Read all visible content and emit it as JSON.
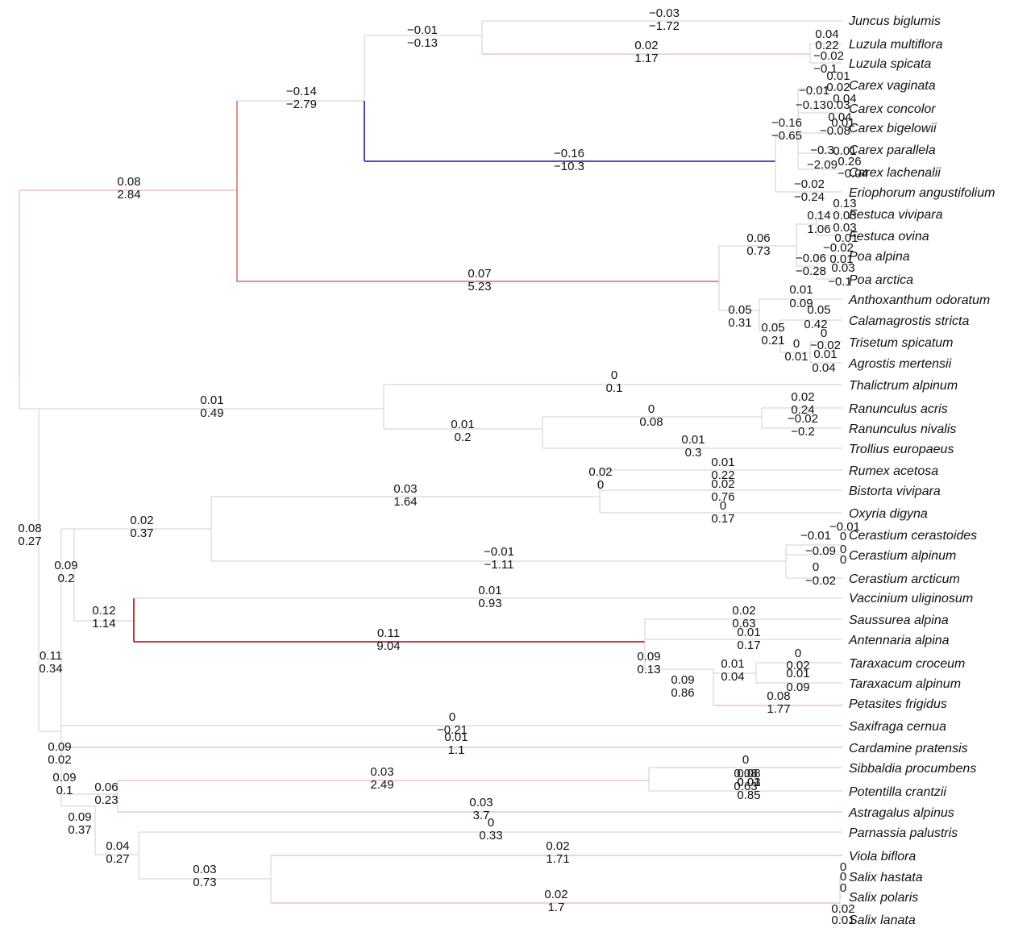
{
  "colors": {
    "edge_default": "#cfcfcf",
    "edge_pink": "#e2a9a9",
    "edge_red": "#c81e1e",
    "edge_darkred": "#b80000",
    "edge_blue": "#1a1aa6",
    "text": "#111111"
  },
  "taxa": [
    "Juncus biglumis",
    "Luzula multiflora",
    "Luzula spicata",
    "Carex vaginata",
    "Carex concolor",
    "Carex bigelowii",
    "Carex parallela",
    "Carex lachenalii",
    "Eriophorum angustifolium",
    "Festuca vivipara",
    "Festuca ovina",
    "Poa alpina",
    "Poa arctica",
    "Anthoxanthum odoratum",
    "Calamagrostis stricta",
    "Trisetum spicatum",
    "Agrostis mertensii",
    "Thalictrum alpinum",
    "Ranunculus acris",
    "Ranunculus nivalis",
    "Trollius europaeus",
    "Rumex acetosa",
    "Bistorta vivipara",
    "Oxyria digyna",
    "Cerastium cerastoides",
    "Cerastium alpinum",
    "Cerastium arcticum",
    "Vaccinium uliginosum",
    "Saussurea alpina",
    "Antennaria alpina",
    "Taraxacum croceum",
    "Taraxacum alpinum",
    "Petasites frigidus",
    "Saxifraga cernua",
    "Cardamine pratensis",
    "Sibbaldia procumbens",
    "Potentilla crantzii",
    "Astragalus alpinus",
    "Parnassia palustris",
    "Viola biflora",
    "Salix hastata",
    "Salix polaris",
    "Salix lanata"
  ],
  "branch_labels": [
    {
      "top": "0.08",
      "bottom": "2.84"
    },
    {
      "top": "−0.14",
      "bottom": "−2.79"
    },
    {
      "top": "−0.01",
      "bottom": "−0.13"
    },
    {
      "top": "−0.03",
      "bottom": "−1.72"
    },
    {
      "top": "0.02",
      "bottom": "1.17"
    },
    {
      "top": "−0.16",
      "bottom": "−10.3"
    },
    {
      "top": "0.07",
      "bottom": "5.23"
    },
    {
      "top": "0.06",
      "bottom": "0.73"
    },
    {
      "top": "0.05",
      "bottom": "0.31"
    },
    {
      "top": "0.05",
      "bottom": "0.21"
    },
    {
      "top": "−0.16",
      "bottom": "−0.65"
    },
    {
      "top": "−0.02",
      "bottom": "−0.24"
    },
    {
      "top": "0.08",
      "bottom": "0.27"
    },
    {
      "top": "0.01",
      "bottom": "0.49"
    },
    {
      "top": "0",
      "bottom": "0.1"
    },
    {
      "top": "0.01",
      "bottom": "0.2"
    },
    {
      "top": "0",
      "bottom": "0.08"
    },
    {
      "top": "0.01",
      "bottom": "0.3"
    },
    {
      "top": "0.02",
      "bottom": "0.24"
    },
    {
      "top": "−0.02",
      "bottom": "−0.2"
    },
    {
      "top": "0.09",
      "bottom": "0.2"
    },
    {
      "top": "0.02",
      "bottom": "0.37"
    },
    {
      "top": "0.03",
      "bottom": "1.64"
    },
    {
      "top": "0.02",
      "bottom": "0"
    },
    {
      "top": "0.01",
      "bottom": "0.22"
    },
    {
      "top": "0.02",
      "bottom": "0.76"
    },
    {
      "top": "0",
      "bottom": "0.17"
    },
    {
      "top": "−0.01",
      "bottom": "−1.11"
    },
    {
      "top": "0.12",
      "bottom": "1.14"
    },
    {
      "top": "0.01",
      "bottom": "0.93"
    },
    {
      "top": "0.11",
      "bottom": "9.04"
    },
    {
      "top": "0.09",
      "bottom": "0.13"
    },
    {
      "top": "0.02",
      "bottom": "0.63"
    },
    {
      "top": "0.01",
      "bottom": "0.17"
    },
    {
      "top": "0.09",
      "bottom": "0.86"
    },
    {
      "top": "0.01",
      "bottom": "0.04"
    },
    {
      "top": "0.08",
      "bottom": "1.77"
    },
    {
      "top": "0.11",
      "bottom": "0.34"
    },
    {
      "top": "0",
      "bottom": "−0.21"
    },
    {
      "top": "0.01",
      "bottom": "1.1"
    },
    {
      "top": "0.09",
      "bottom": "0.02"
    },
    {
      "top": "0.09",
      "bottom": "0.1"
    },
    {
      "top": "0.06",
      "bottom": "0.23"
    },
    {
      "top": "0.03",
      "bottom": "2.49"
    },
    {
      "top": "0.03",
      "bottom": "3.7"
    },
    {
      "top": "0.09",
      "bottom": "0.37"
    },
    {
      "top": "0",
      "bottom": "0.33"
    },
    {
      "top": "0.04",
      "bottom": "0.27"
    },
    {
      "top": "0.03",
      "bottom": "0.73"
    },
    {
      "top": "0.02",
      "bottom": "1.71"
    },
    {
      "top": "0.02",
      "bottom": "1.7"
    },
    {
      "top": "0.08",
      "bottom": "0.63"
    },
    {
      "top": "0.01",
      "bottom": "0.85"
    }
  ],
  "tip_labels": [
    "0.04",
    "0.22",
    "−0.02",
    "−0.1",
    "0.01",
    "−0.01",
    "0.02",
    "0.04",
    "−0.13",
    "0.03",
    "0.04",
    "0.01",
    "−0.08",
    "−0.3",
    "0.01",
    "−2.09",
    "0.26",
    "−0.04",
    "0.13",
    "0.14",
    "0.03",
    "1.06",
    "0.03",
    "0.01",
    "−0.02",
    "−0.06",
    "0.01",
    "−0.28",
    "0.03",
    "−0.1",
    "0.01",
    "0.09",
    "0.05",
    "0.42",
    "0",
    "0",
    "−0.02",
    "0.01",
    "0.01",
    "0.04",
    "−0.01",
    "0",
    "−0.01",
    "0",
    "−0.09",
    "0",
    "0",
    "−0.02",
    "0",
    "0.02",
    "0.01",
    "0.09",
    "0",
    "0.08",
    "0.03",
    "0",
    "0",
    "0",
    "0.02",
    "0.01"
  ]
}
